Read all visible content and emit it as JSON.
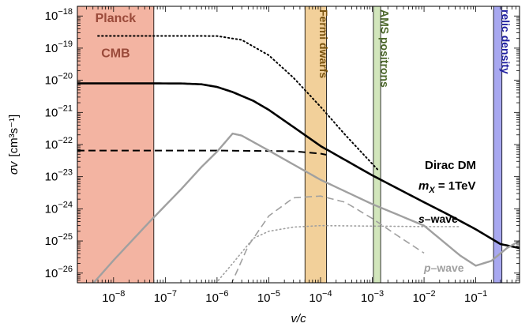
{
  "chart_data": {
    "type": "line",
    "xlabel": "v/c",
    "ylabel_main": "σv",
    "ylabel_units": "[cm³s⁻¹]",
    "x_scale": "log",
    "y_scale": "log",
    "xlim": [
      2e-09,
      0.7
    ],
    "ylim": [
      5e-27,
      2e-18
    ],
    "x_ticks": [
      {
        "value": 1e-08,
        "base": "10",
        "exp": "−8"
      },
      {
        "value": 1e-07,
        "base": "10",
        "exp": "−7"
      },
      {
        "value": 1e-06,
        "base": "10",
        "exp": "−6"
      },
      {
        "value": 1e-05,
        "base": "10",
        "exp": "−5"
      },
      {
        "value": 0.0001,
        "base": "10",
        "exp": "−4"
      },
      {
        "value": 0.001,
        "base": "10",
        "exp": "−3"
      },
      {
        "value": 0.01,
        "base": "10",
        "exp": "−2"
      },
      {
        "value": 0.1,
        "base": "10",
        "exp": "−1"
      }
    ],
    "y_ticks": [
      {
        "value": 1e-18,
        "base": "10",
        "exp": "−18"
      },
      {
        "value": 1e-19,
        "base": "10",
        "exp": "−19"
      },
      {
        "value": 1e-20,
        "base": "10",
        "exp": "−20"
      },
      {
        "value": 1e-21,
        "base": "10",
        "exp": "−21"
      },
      {
        "value": 1e-22,
        "base": "10",
        "exp": "−22"
      },
      {
        "value": 1e-23,
        "base": "10",
        "exp": "−23"
      },
      {
        "value": 1e-24,
        "base": "10",
        "exp": "−24"
      },
      {
        "value": 1e-25,
        "base": "10",
        "exp": "−25"
      },
      {
        "value": 1e-26,
        "base": "10",
        "exp": "−26"
      }
    ],
    "bands": [
      {
        "label_lines": [
          "Planck",
          "CMB"
        ],
        "x": [
          2e-09,
          6e-08
        ],
        "color": "#f3b4a2",
        "text_color": "#9a4a3a",
        "orientation": "horizontal",
        "label_y": [
          2e-18,
          1.6e-19
        ]
      },
      {
        "label_lines": [
          "Fermi dwarfs"
        ],
        "x": [
          5e-05,
          0.00013
        ],
        "color": "#f2d09a",
        "text_color": "#7a5410",
        "orientation": "vertical"
      },
      {
        "label_lines": [
          "AMS positrons"
        ],
        "x": [
          0.00105,
          0.00145
        ],
        "color": "#d2e6bc",
        "text_color": "#4e6a2c",
        "orientation": "vertical"
      },
      {
        "label_lines": [
          "relic density"
        ],
        "x": [
          0.22,
          0.32
        ],
        "color": "#a8a8f0",
        "text_color": "#2020a0",
        "orientation": "vertical"
      }
    ],
    "series": [
      {
        "style": "solid",
        "color": "#000000",
        "width": 2.6,
        "points": [
          [
            2e-09,
            8e-21
          ],
          [
            4e-08,
            8e-21
          ],
          [
            2e-07,
            7.95e-21
          ],
          [
            5e-07,
            7.5e-21
          ],
          [
            1e-06,
            6.2e-21
          ],
          [
            2e-06,
            4.3e-21
          ],
          [
            5e-06,
            2.3e-21
          ],
          [
            1e-05,
            1.2e-21
          ],
          [
            3e-05,
            3.5e-22
          ],
          [
            0.0001,
            9e-23
          ],
          [
            0.001,
            1.1e-23
          ],
          [
            0.01,
            1.6e-24
          ],
          [
            0.03,
            6.5e-25
          ],
          [
            0.1,
            2.3e-25
          ],
          [
            0.3,
            8e-26
          ],
          [
            0.7,
            6e-26
          ]
        ]
      },
      {
        "style": "dotted",
        "color": "#000000",
        "width": 2.0,
        "points": [
          [
            5e-09,
            2.4e-19
          ],
          [
            2e-07,
            2.4e-19
          ],
          [
            1e-06,
            2.38e-19
          ],
          [
            3e-06,
            1.8e-19
          ],
          [
            1e-05,
            6e-20
          ],
          [
            3e-05,
            1.2e-20
          ],
          [
            0.0001,
            1.5e-21
          ],
          [
            0.0003,
            2e-22
          ],
          [
            0.001,
            2.5e-23
          ],
          [
            0.0013,
            1.6e-23
          ]
        ]
      },
      {
        "style": "dashed",
        "color": "#000000",
        "width": 2.0,
        "points": [
          [
            2e-09,
            6.5e-23
          ],
          [
            1e-06,
            6.5e-23
          ],
          [
            3e-05,
            6.2e-23
          ],
          [
            0.0001,
            5.2e-23
          ],
          [
            0.00013,
            4.8e-23
          ]
        ]
      },
      {
        "style": "solid",
        "color": "#a0a0a0",
        "width": 2.4,
        "points": [
          [
            2.5e-09,
            2e-27
          ],
          [
            1e-08,
            2.5e-26
          ],
          [
            5e-08,
            4e-25
          ],
          [
            2e-07,
            4e-24
          ],
          [
            5e-07,
            2e-23
          ],
          [
            1e-06,
            6e-23
          ],
          [
            2e-06,
            2.2e-22
          ],
          [
            3e-06,
            1.9e-22
          ],
          [
            1e-05,
            6.5e-23
          ],
          [
            0.0001,
            8e-24
          ],
          [
            0.001,
            1.4e-24
          ],
          [
            0.01,
            3e-25
          ],
          [
            0.05,
            3.5e-26
          ],
          [
            0.1,
            1.7e-26
          ],
          [
            0.2,
            2.4e-26
          ],
          [
            0.4,
            6e-26
          ],
          [
            0.7,
            1e-25
          ]
        ]
      },
      {
        "style": "dashed",
        "color": "#a0a0a0",
        "width": 1.6,
        "points": [
          [
            1.5e-06,
            2e-27
          ],
          [
            4e-06,
            7e-26
          ],
          [
            1e-05,
            6e-25
          ],
          [
            3e-05,
            2.2e-24
          ],
          [
            0.0001,
            2.5e-24
          ],
          [
            0.0003,
            1.6e-24
          ],
          [
            0.001,
            5e-25
          ],
          [
            0.003,
            1.5e-25
          ],
          [
            0.01,
            4.2e-26
          ]
        ]
      },
      {
        "style": "dotted",
        "color": "#a0a0a0",
        "width": 1.6,
        "points": [
          [
            6e-07,
            2e-27
          ],
          [
            2e-06,
            2e-26
          ],
          [
            5e-06,
            1.2e-25
          ],
          [
            1e-05,
            2e-25
          ],
          [
            3e-05,
            2.7e-25
          ],
          [
            0.0001,
            3e-25
          ],
          [
            0.001,
            2.9e-25
          ],
          [
            0.01,
            2.8e-25
          ],
          [
            0.05,
            2.8e-25
          ]
        ]
      }
    ],
    "annotations": {
      "model": "Dirac DM",
      "mass_prefix": "m",
      "mass_sub": "X",
      "mass_value": " = 1TeV",
      "s_prefix": "s",
      "s_suffix": "–wave",
      "p_prefix": "p",
      "p_suffix": "–wave"
    }
  }
}
